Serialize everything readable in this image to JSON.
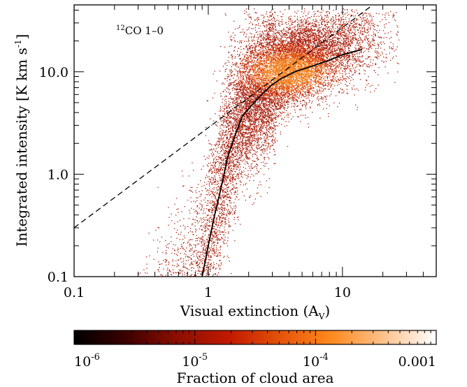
{
  "chart_data": {
    "type": "scatter",
    "annotation": "CO 1–0",
    "annotation_sup": "12",
    "xlabel": "Visual extinction (A",
    "xlabel_sub": "V",
    "xlabel_close": ")",
    "ylabel": "Integrated intensity [K km s",
    "ylabel_sup": "-1",
    "ylabel_close": "]",
    "x_scale": "log",
    "y_scale": "log",
    "xlim": [
      0.1,
      50
    ],
    "ylim": [
      0.1,
      45
    ],
    "x_ticks": [
      {
        "value": 0.1,
        "label": "0.1"
      },
      {
        "value": 1,
        "label": "1"
      },
      {
        "value": 10,
        "label": "10"
      }
    ],
    "y_ticks": [
      {
        "value": 0.1,
        "label": "0.1"
      },
      {
        "value": 1,
        "label": "1.0"
      },
      {
        "value": 10,
        "label": "10.0"
      }
    ],
    "grid": false,
    "dashed_line": [
      [
        0.1,
        0.3
      ],
      [
        18,
        48
      ]
    ],
    "median_curve": [
      [
        0.9,
        0.1
      ],
      [
        1.0,
        0.2
      ],
      [
        1.1,
        0.37
      ],
      [
        1.25,
        0.75
      ],
      [
        1.4,
        1.5
      ],
      [
        1.6,
        2.5
      ],
      [
        1.8,
        3.7
      ],
      [
        2.1,
        4.7
      ],
      [
        2.5,
        6.0
      ],
      [
        3.0,
        7.5
      ],
      [
        3.5,
        8.6
      ],
      [
        4.5,
        10.1
      ],
      [
        6.0,
        11.4
      ],
      [
        8.0,
        13.0
      ],
      [
        10.0,
        14.7
      ],
      [
        14.0,
        16.5
      ]
    ],
    "scatter_density": [
      {
        "x_range": [
          0.28,
          0.8
        ],
        "y_range": [
          0.25,
          8
        ],
        "density": "sparse"
      },
      {
        "x_range": [
          0.8,
          1.6
        ],
        "y_range": [
          0.1,
          12
        ],
        "density": "medium"
      },
      {
        "x_range": [
          1.6,
          3.5
        ],
        "y_range": [
          0.1,
          25
        ],
        "density": "high"
      },
      {
        "x_range": [
          3.5,
          16
        ],
        "y_range": [
          2,
          30
        ],
        "density": "peak"
      },
      {
        "x_range": [
          16,
          25
        ],
        "y_range": [
          4,
          20
        ],
        "density": "sparse"
      }
    ],
    "colorbar": {
      "label": "Fraction of cloud area",
      "scale": "log",
      "range": [
        1e-06,
        0.001
      ],
      "ticks": [
        {
          "base": "10",
          "exp": "-6"
        },
        {
          "base": "10",
          "exp": "-5"
        },
        {
          "base": "10",
          "exp": "-4"
        },
        {
          "base": "",
          "exp": "",
          "text": "0.001"
        }
      ],
      "colormap": [
        "#000000",
        "#3a0000",
        "#8a0e00",
        "#c21a00",
        "#e4530a",
        "#ff8a1e",
        "#ffc490",
        "#ffffff"
      ]
    }
  }
}
